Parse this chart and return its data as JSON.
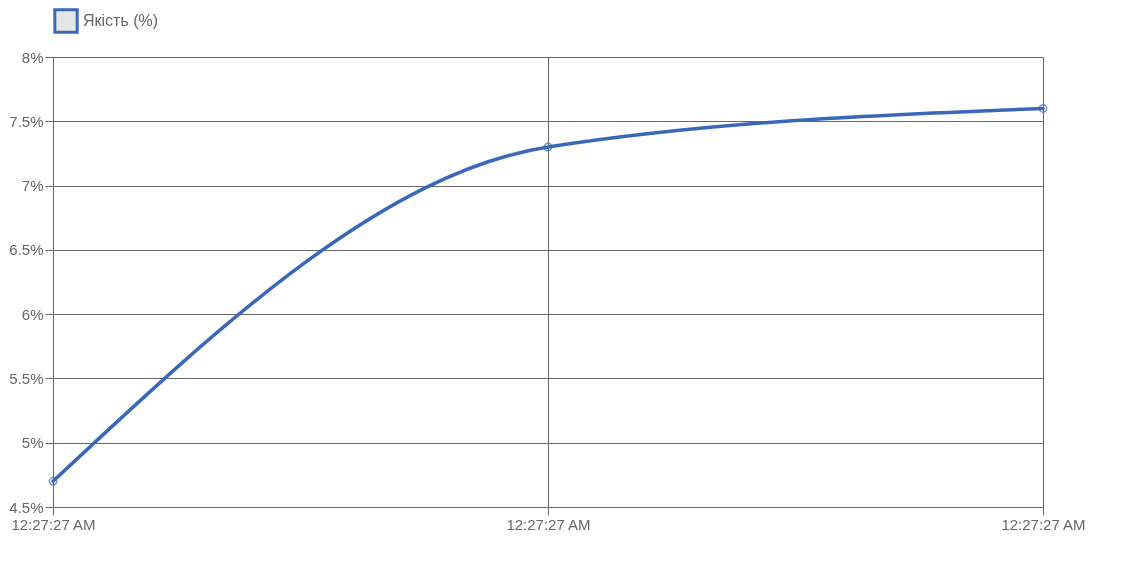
{
  "chart_data": {
    "type": "line",
    "categories": [
      "12:27:27 AM",
      "12:27:27 AM",
      "12:27:27 AM"
    ],
    "series": [
      {
        "name": "Якість (%)",
        "color": "#3a68b8",
        "values": [
          4.7,
          7.3,
          7.6
        ]
      }
    ],
    "ylim": [
      4.5,
      8
    ],
    "yticks": [
      {
        "value": 4.5,
        "label": "4.5%"
      },
      {
        "value": 5,
        "label": "5%"
      },
      {
        "value": 5.5,
        "label": "5.5%"
      },
      {
        "value": 6,
        "label": "6%"
      },
      {
        "value": 6.5,
        "label": "6.5%"
      },
      {
        "value": 7,
        "label": "7%"
      },
      {
        "value": 7.5,
        "label": "7.5%"
      },
      {
        "value": 8,
        "label": "8%"
      }
    ],
    "grid": true,
    "legend": "top",
    "marker": "circle",
    "line_style": "solid"
  }
}
